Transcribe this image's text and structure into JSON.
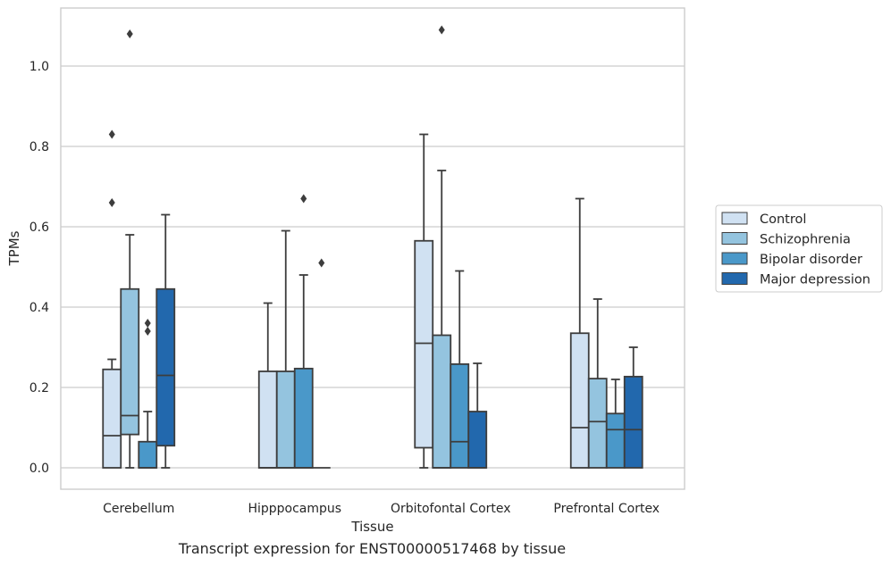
{
  "chart_data": {
    "type": "box",
    "xlabel": "Tissue",
    "ylabel": "TPMs",
    "caption": "Transcript expression for ENST00000517468 by tissue",
    "ylim": [
      -0.053,
      1.145
    ],
    "yticks": [
      "0.0",
      "0.2",
      "0.4",
      "0.6",
      "0.8",
      "1.0"
    ],
    "grid": true,
    "legend_position": "right",
    "categories": [
      "Cerebellum",
      "Hipppocampus",
      "Orbitofontal Cortex",
      "Prefrontal Cortex"
    ],
    "series": [
      {
        "name": "Control",
        "color": "#d0e1f2",
        "boxes": [
          {
            "whislo": 0,
            "q1": 0,
            "med": 0.08,
            "q3": 0.245,
            "whishi": 0.27,
            "fliers": [
              0.66,
              0.83
            ]
          },
          {
            "whislo": 0,
            "q1": 0,
            "med": 0,
            "q3": 0.24,
            "whishi": 0.41,
            "fliers": []
          },
          {
            "whislo": 0,
            "q1": 0.05,
            "med": 0.31,
            "q3": 0.565,
            "whishi": 0.83,
            "fliers": []
          },
          {
            "whislo": 0,
            "q1": 0,
            "med": 0.1,
            "q3": 0.335,
            "whishi": 0.67,
            "fliers": []
          }
        ]
      },
      {
        "name": "Schizophrenia",
        "color": "#94c4df",
        "boxes": [
          {
            "whislo": 0,
            "q1": 0.083,
            "med": 0.13,
            "q3": 0.445,
            "whishi": 0.58,
            "fliers": [
              1.08
            ]
          },
          {
            "whislo": 0,
            "q1": 0,
            "med": 0,
            "q3": 0.24,
            "whishi": 0.59,
            "fliers": []
          },
          {
            "whislo": 0,
            "q1": 0,
            "med": 0,
            "q3": 0.33,
            "whishi": 0.74,
            "fliers": [
              1.09
            ]
          },
          {
            "whislo": 0,
            "q1": 0,
            "med": 0.115,
            "q3": 0.222,
            "whishi": 0.42,
            "fliers": []
          }
        ]
      },
      {
        "name": "Bipolar disorder",
        "color": "#4a98c9",
        "boxes": [
          {
            "whislo": 0,
            "q1": 0,
            "med": 0,
            "q3": 0.065,
            "whishi": 0.14,
            "fliers": [
              0.34,
              0.36
            ]
          },
          {
            "whislo": 0,
            "q1": 0,
            "med": 0,
            "q3": 0.247,
            "whishi": 0.48,
            "fliers": [
              0.67
            ]
          },
          {
            "whislo": 0,
            "q1": 0,
            "med": 0.065,
            "q3": 0.258,
            "whishi": 0.49,
            "fliers": []
          },
          {
            "whislo": 0,
            "q1": 0,
            "med": 0.095,
            "q3": 0.135,
            "whishi": 0.22,
            "fliers": []
          }
        ]
      },
      {
        "name": "Major depression",
        "color": "#2268ad",
        "boxes": [
          {
            "whislo": 0,
            "q1": 0.055,
            "med": 0.23,
            "q3": 0.445,
            "whishi": 0.63,
            "fliers": []
          },
          {
            "whislo": 0,
            "q1": 0,
            "med": 0,
            "q3": 0,
            "whishi": 0,
            "fliers": [
              0.51
            ]
          },
          {
            "whislo": 0,
            "q1": 0,
            "med": 0,
            "q3": 0.14,
            "whishi": 0.26,
            "fliers": []
          },
          {
            "whislo": 0,
            "q1": 0,
            "med": 0.095,
            "q3": 0.227,
            "whishi": 0.3,
            "fliers": []
          }
        ]
      }
    ]
  }
}
